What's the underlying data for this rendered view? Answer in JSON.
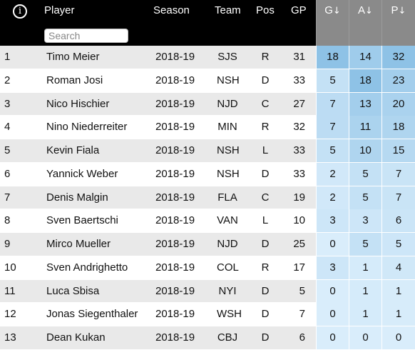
{
  "header": {
    "info_icon": "i",
    "player": "Player",
    "season": "Season",
    "team": "Team",
    "pos": "Pos",
    "gp": "GP",
    "g": "G",
    "a": "A",
    "p": "P",
    "sort_arrow": "↓",
    "search_placeholder": "Search"
  },
  "colors": {
    "header_bg": "#000000",
    "stat_header_bg": "#8a8a8a",
    "row_stripe": "#e9e9e9",
    "heat_low": "#d9edfb",
    "heat_high": "#8ec2e6"
  },
  "rows": [
    {
      "rank": "1",
      "player": "Timo Meier",
      "season": "2018-19",
      "team": "SJS",
      "pos": "R",
      "gp": "31",
      "g": "18",
      "a": "14",
      "p": "32"
    },
    {
      "rank": "2",
      "player": "Roman Josi",
      "season": "2018-19",
      "team": "NSH",
      "pos": "D",
      "gp": "33",
      "g": "5",
      "a": "18",
      "p": "23"
    },
    {
      "rank": "3",
      "player": "Nico Hischier",
      "season": "2018-19",
      "team": "NJD",
      "pos": "C",
      "gp": "27",
      "g": "7",
      "a": "13",
      "p": "20"
    },
    {
      "rank": "4",
      "player": "Nino Niederreiter",
      "season": "2018-19",
      "team": "MIN",
      "pos": "R",
      "gp": "32",
      "g": "7",
      "a": "11",
      "p": "18"
    },
    {
      "rank": "5",
      "player": "Kevin Fiala",
      "season": "2018-19",
      "team": "NSH",
      "pos": "L",
      "gp": "33",
      "g": "5",
      "a": "10",
      "p": "15"
    },
    {
      "rank": "6",
      "player": "Yannick Weber",
      "season": "2018-19",
      "team": "NSH",
      "pos": "D",
      "gp": "33",
      "g": "2",
      "a": "5",
      "p": "7"
    },
    {
      "rank": "7",
      "player": "Denis Malgin",
      "season": "2018-19",
      "team": "FLA",
      "pos": "C",
      "gp": "19",
      "g": "2",
      "a": "5",
      "p": "7"
    },
    {
      "rank": "8",
      "player": "Sven Baertschi",
      "season": "2018-19",
      "team": "VAN",
      "pos": "L",
      "gp": "10",
      "g": "3",
      "a": "3",
      "p": "6"
    },
    {
      "rank": "9",
      "player": "Mirco Mueller",
      "season": "2018-19",
      "team": "NJD",
      "pos": "D",
      "gp": "25",
      "g": "0",
      "a": "5",
      "p": "5"
    },
    {
      "rank": "10",
      "player": "Sven Andrighetto",
      "season": "2018-19",
      "team": "COL",
      "pos": "R",
      "gp": "17",
      "g": "3",
      "a": "1",
      "p": "4"
    },
    {
      "rank": "11",
      "player": "Luca Sbisa",
      "season": "2018-19",
      "team": "NYI",
      "pos": "D",
      "gp": "5",
      "g": "0",
      "a": "1",
      "p": "1"
    },
    {
      "rank": "12",
      "player": "Jonas Siegenthaler",
      "season": "2018-19",
      "team": "WSH",
      "pos": "D",
      "gp": "7",
      "g": "0",
      "a": "1",
      "p": "1"
    },
    {
      "rank": "13",
      "player": "Dean Kukan",
      "season": "2018-19",
      "team": "CBJ",
      "pos": "D",
      "gp": "6",
      "g": "0",
      "a": "0",
      "p": "0"
    }
  ]
}
